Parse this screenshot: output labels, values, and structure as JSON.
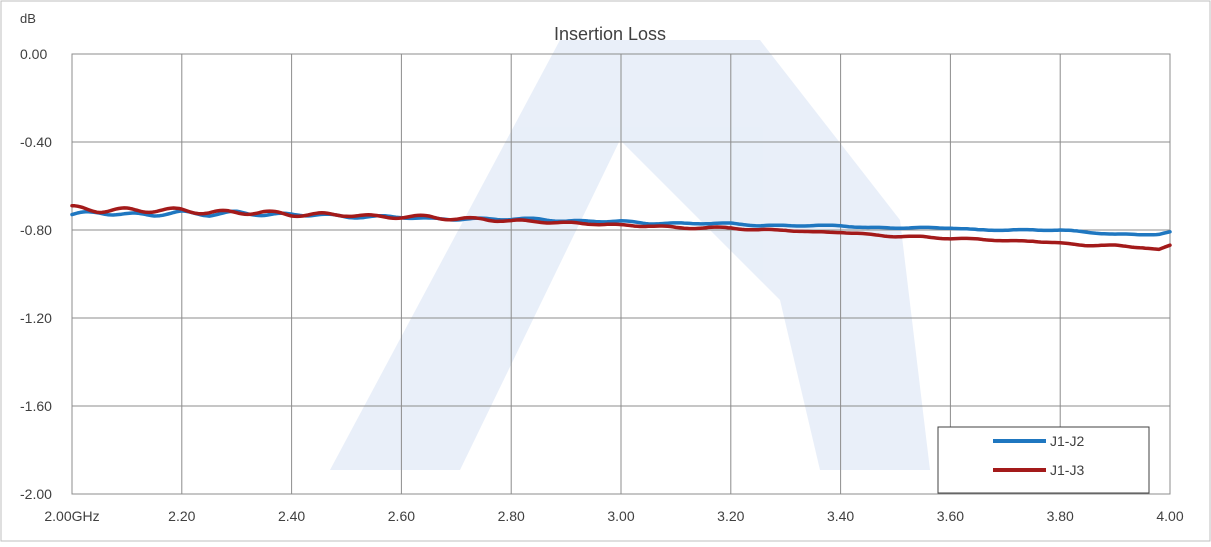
{
  "chart_data": {
    "type": "line",
    "title": "Insertion Loss",
    "ylabel": "dB",
    "xlim": [
      2.0,
      4.0
    ],
    "ylim": [
      -2.0,
      0.0
    ],
    "x_ticks": [
      2.0,
      2.2,
      2.4,
      2.6,
      2.8,
      3.0,
      3.2,
      3.4,
      3.6,
      3.8,
      4.0
    ],
    "x_tick_labels": [
      "2.00GHz",
      "2.20",
      "2.40",
      "2.60",
      "2.80",
      "3.00",
      "3.20",
      "3.40",
      "3.60",
      "3.80",
      "4.00"
    ],
    "y_ticks": [
      0.0,
      -0.4,
      -0.8,
      -1.2,
      -1.6,
      -2.0
    ],
    "y_tick_labels": [
      "0.00",
      "-0.40",
      "-0.80",
      "-1.20",
      "-1.60",
      "-2.00"
    ],
    "grid": true,
    "legend_position": "bottom-right",
    "series": [
      {
        "name": "J1-J2",
        "color": "#1f77c0",
        "x": [
          2.0,
          2.05,
          2.1,
          2.15,
          2.2,
          2.25,
          2.3,
          2.35,
          2.4,
          2.45,
          2.5,
          2.55,
          2.6,
          2.65,
          2.7,
          2.75,
          2.8,
          2.85,
          2.9,
          2.95,
          3.0,
          3.05,
          3.1,
          3.15,
          3.2,
          3.25,
          3.3,
          3.35,
          3.4,
          3.45,
          3.5,
          3.55,
          3.6,
          3.65,
          3.7,
          3.75,
          3.8,
          3.85,
          3.9,
          3.95,
          3.98,
          4.0
        ],
        "y": [
          -0.73,
          -0.72,
          -0.73,
          -0.73,
          -0.72,
          -0.73,
          -0.72,
          -0.73,
          -0.73,
          -0.73,
          -0.74,
          -0.74,
          -0.74,
          -0.75,
          -0.75,
          -0.75,
          -0.75,
          -0.75,
          -0.76,
          -0.76,
          -0.76,
          -0.77,
          -0.77,
          -0.77,
          -0.77,
          -0.78,
          -0.78,
          -0.78,
          -0.78,
          -0.79,
          -0.79,
          -0.79,
          -0.79,
          -0.8,
          -0.8,
          -0.8,
          -0.8,
          -0.81,
          -0.82,
          -0.82,
          -0.82,
          -0.81
        ]
      },
      {
        "name": "J1-J3",
        "color": "#a31a1a",
        "x": [
          2.0,
          2.05,
          2.1,
          2.15,
          2.2,
          2.25,
          2.3,
          2.35,
          2.4,
          2.45,
          2.5,
          2.55,
          2.6,
          2.65,
          2.7,
          2.75,
          2.8,
          2.85,
          2.9,
          2.95,
          3.0,
          3.05,
          3.1,
          3.15,
          3.2,
          3.25,
          3.3,
          3.35,
          3.4,
          3.45,
          3.5,
          3.55,
          3.6,
          3.65,
          3.7,
          3.75,
          3.8,
          3.85,
          3.9,
          3.95,
          3.98,
          4.0
        ],
        "y": [
          -0.7,
          -0.71,
          -0.71,
          -0.71,
          -0.71,
          -0.72,
          -0.72,
          -0.72,
          -0.73,
          -0.73,
          -0.73,
          -0.74,
          -0.74,
          -0.74,
          -0.75,
          -0.75,
          -0.76,
          -0.76,
          -0.77,
          -0.77,
          -0.78,
          -0.78,
          -0.79,
          -0.79,
          -0.79,
          -0.8,
          -0.8,
          -0.81,
          -0.81,
          -0.82,
          -0.83,
          -0.83,
          -0.84,
          -0.84,
          -0.85,
          -0.85,
          -0.86,
          -0.87,
          -0.87,
          -0.88,
          -0.89,
          -0.87
        ]
      }
    ]
  }
}
